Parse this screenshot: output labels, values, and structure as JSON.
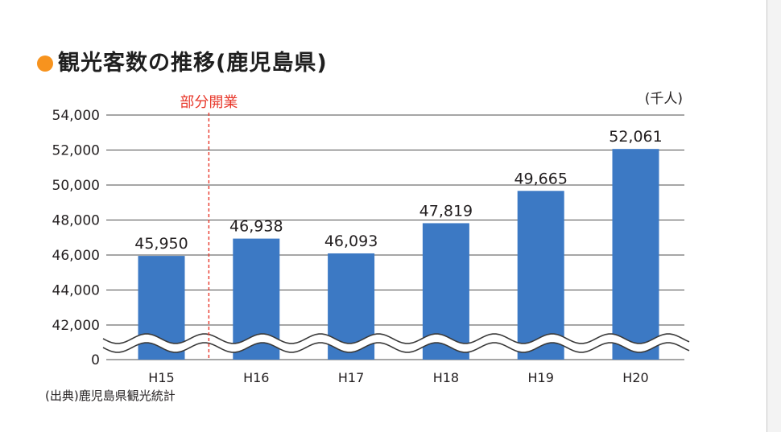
{
  "title": "観光客数の推移(鹿児島県)",
  "source": "(出典)鹿児島県観光統計",
  "colors": {
    "bar": "#3c79c4",
    "accent_dot": "#f7931e",
    "annotation": "#e8382b"
  },
  "chart_data": {
    "type": "bar",
    "title": "観光客数の推移(鹿児島県)",
    "unit_label": "(千人)",
    "categories": [
      "H15",
      "H16",
      "H17",
      "H18",
      "H19",
      "H20"
    ],
    "values": [
      45950,
      46938,
      46093,
      47819,
      49665,
      52061
    ],
    "value_labels": [
      "45,950",
      "46,938",
      "46,093",
      "47,819",
      "49,665",
      "52,061"
    ],
    "y_ticks": [
      0,
      42000,
      44000,
      46000,
      48000,
      50000,
      52000,
      54000
    ],
    "y_tick_labels": [
      "0",
      "42,000",
      "44,000",
      "46,000",
      "48,000",
      "50,000",
      "52,000",
      "54,000"
    ],
    "ylim": [
      0,
      54000
    ],
    "axis_break": [
      0,
      42000
    ],
    "grid": true,
    "annotation": {
      "label": "部分開業",
      "between": [
        "H15",
        "H16"
      ],
      "style": "dashed vertical line"
    },
    "source": "(出典)鹿児島県観光統計"
  }
}
